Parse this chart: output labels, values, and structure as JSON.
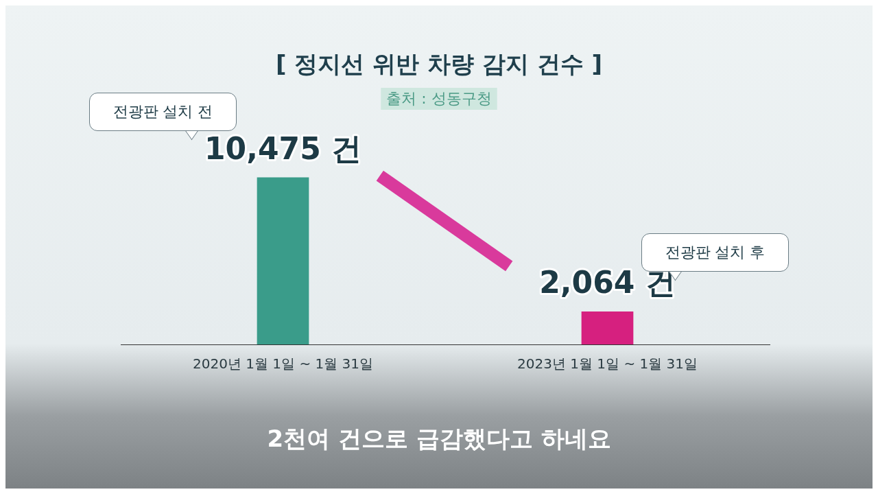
{
  "chart_data": {
    "type": "bar",
    "title": "[ 정지선 위반 차량 감지 건수 ]",
    "subtitle": "출처 : 성동구청",
    "categories": [
      "2020년 1월 1일 ~ 1월 31일",
      "2023년 1월 1일 ~ 1월 31일"
    ],
    "values": [
      10475,
      2064
    ],
    "colors": [
      "#3a9c8a",
      "#d6207f"
    ],
    "value_labels": [
      "10,475 건",
      "2,064 건"
    ],
    "relative": false,
    "grid": false,
    "legend": false,
    "annotations": [
      "전광판 설치 전",
      "전광판 설치 후",
      "2천여 건으로 급감했다고 하네요"
    ]
  }
}
